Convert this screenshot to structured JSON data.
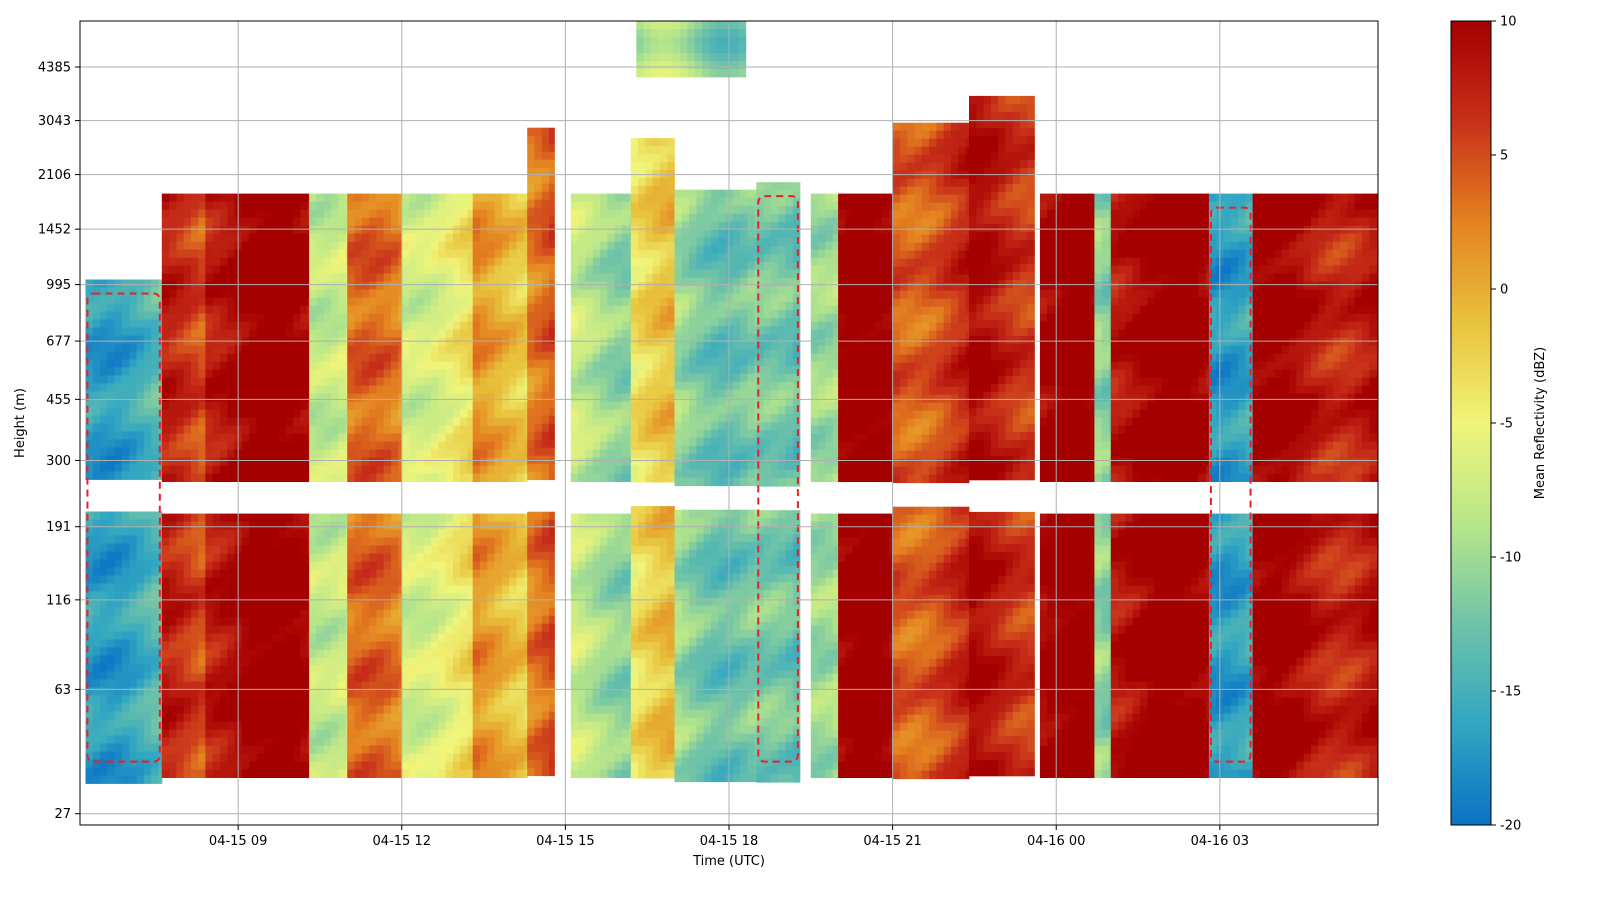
{
  "chart_data": {
    "type": "heatmap",
    "title": "",
    "xlabel": "Time (UTC)",
    "ylabel": "Height (m)",
    "x_ticks": [
      "04-15 09",
      "04-15 12",
      "04-15 15",
      "04-15 18",
      "04-15 21",
      "04-16 00",
      "04-16 03"
    ],
    "x_range_hours": [
      6.1,
      29.9
    ],
    "y_scale": "log",
    "y_ticks": [
      27,
      63,
      116,
      191,
      300,
      455,
      677,
      995,
      1452,
      2106,
      3043,
      4385
    ],
    "y_range_m": [
      25,
      6000
    ],
    "grid": true,
    "colorbar": {
      "label": "Mean Reflectivity (dBZ)",
      "ticks": [
        10,
        5,
        0,
        -5,
        -10,
        -15,
        -20
      ],
      "range": [
        -20,
        10
      ],
      "colormap": [
        "#0a72c4",
        "#31a6c2",
        "#6fc3a8",
        "#b8e68a",
        "#f0f57a",
        "#e8c23c",
        "#e48220",
        "#c8301a",
        "#a50000"
      ]
    },
    "contour": {
      "color": "#e8202a",
      "style": "dashed"
    },
    "columns": [
      {
        "t0": 6.2,
        "t1": 7.6,
        "bottom": 35,
        "top": 1030,
        "dbz": -15
      },
      {
        "t0": 7.6,
        "t1": 8.4,
        "bottom": 35,
        "top": 1850,
        "dbz": 6
      },
      {
        "t0": 8.4,
        "t1": 10.3,
        "bottom": 35,
        "top": 1850,
        "dbz": 10
      },
      {
        "t0": 10.3,
        "t1": 11.0,
        "bottom": 35,
        "top": 1850,
        "dbz": -6
      },
      {
        "t0": 11.0,
        "t1": 12.0,
        "bottom": 35,
        "top": 1850,
        "dbz": 2
      },
      {
        "t0": 12.0,
        "t1": 13.3,
        "bottom": 35,
        "top": 1850,
        "dbz": -5
      },
      {
        "t0": 13.3,
        "t1": 14.3,
        "bottom": 35,
        "top": 1850,
        "dbz": 0
      },
      {
        "t0": 14.3,
        "t1": 14.8,
        "bottom": 35,
        "top": 2900,
        "dbz": 4
      },
      {
        "t0": 15.1,
        "t1": 16.2,
        "bottom": 35,
        "top": 1850,
        "dbz": -9
      },
      {
        "t0": 16.2,
        "t1": 17.0,
        "bottom": 35,
        "top": 2700,
        "dbz": -3
      },
      {
        "t0": 17.0,
        "t1": 18.5,
        "bottom": 35,
        "top": 1900,
        "dbz": -11
      },
      {
        "t0": 18.5,
        "t1": 19.3,
        "bottom": 35,
        "top": 2000,
        "dbz": -14
      },
      {
        "t0": 19.5,
        "t1": 20.0,
        "bottom": 35,
        "top": 1850,
        "dbz": -8
      },
      {
        "t0": 20.0,
        "t1": 21.0,
        "bottom": 35,
        "top": 1850,
        "dbz": 10
      },
      {
        "t0": 21.0,
        "t1": 22.4,
        "bottom": 35,
        "top": 3000,
        "dbz": 6
      },
      {
        "t0": 22.4,
        "t1": 23.6,
        "bottom": 35,
        "top": 3600,
        "dbz": 8
      },
      {
        "t0": 23.7,
        "t1": 24.7,
        "bottom": 35,
        "top": 1850,
        "dbz": 10
      },
      {
        "t0": 24.7,
        "t1": 25.0,
        "bottom": 35,
        "top": 1850,
        "dbz": -10
      },
      {
        "t0": 25.0,
        "t1": 26.8,
        "bottom": 35,
        "top": 1850,
        "dbz": 10
      },
      {
        "t0": 26.8,
        "t1": 27.6,
        "bottom": 35,
        "top": 1850,
        "dbz": -15
      },
      {
        "t0": 27.6,
        "t1": 29.9,
        "bottom": 35,
        "top": 1850,
        "dbz": 9
      }
    ],
    "upper_cloud": {
      "t0": 16.3,
      "t1": 18.3,
      "bottom": 4200,
      "top": 6000,
      "dbz": -10
    },
    "data_gap_height_m": [
      250,
      220
    ]
  }
}
